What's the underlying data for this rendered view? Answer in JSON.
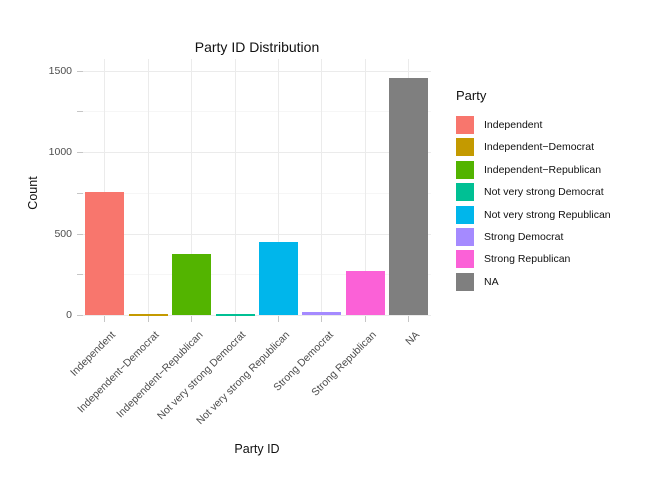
{
  "chart_data": {
    "type": "bar",
    "title": "Party ID Distribution",
    "xlabel": "Party ID",
    "ylabel": "Count",
    "categories": [
      "Independent",
      "Independent−Democrat",
      "Independent−Republican",
      "Not very strong Democrat",
      "Not very strong Republican",
      "Strong Democrat",
      "Strong Republican",
      "NA"
    ],
    "values": [
      755,
      10,
      380,
      10,
      452,
      22,
      272,
      1455
    ],
    "colors": [
      "#F8766D",
      "#C49A00",
      "#53B400",
      "#00C094",
      "#00B6EB",
      "#A58AFF",
      "#FB61D7",
      "#7F7F7F"
    ],
    "ylim": [
      0,
      1500
    ],
    "yticks": [
      0,
      500,
      1000,
      1500
    ],
    "yticks_minor": [
      250,
      750,
      1250
    ],
    "grid": "major and minor horizontal, major vertical per category, light gray on white",
    "legend": {
      "title": "Party",
      "position": "right",
      "entries": [
        "Independent",
        "Independent−Democrat",
        "Independent−Republican",
        "Not very strong Democrat",
        "Not very strong Republican",
        "Strong Democrat",
        "Strong Republican",
        "NA"
      ]
    }
  }
}
